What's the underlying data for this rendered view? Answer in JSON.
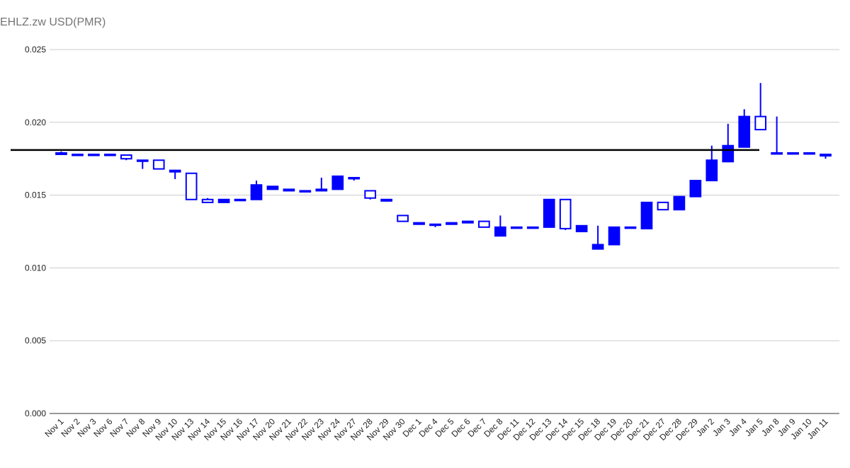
{
  "chart_data": {
    "type": "candlestick",
    "title": "EHLZ.zw USD(PMR)",
    "color": "#0000ff",
    "categories": [
      "Nov 1",
      "Nov 2",
      "Nov 3",
      "Nov 6",
      "Nov 7",
      "Nov 8",
      "Nov 9",
      "Nov 10",
      "Nov 13",
      "Nov 14",
      "Nov 15",
      "Nov 16",
      "Nov 17",
      "Nov 20",
      "Nov 21",
      "Nov 22",
      "Nov 23",
      "Nov 24",
      "Nov 27",
      "Nov 28",
      "Nov 29",
      "Nov 30",
      "Dec 1",
      "Dec 4",
      "Dec 5",
      "Dec 6",
      "Dec 7",
      "Dec 8",
      "Dec 11",
      "Dec 12",
      "Dec 13",
      "Dec 14",
      "Dec 15",
      "Dec 18",
      "Dec 19",
      "Dec 20",
      "Dec 21",
      "Dec 27",
      "Dec 28",
      "Dec 29",
      "Jan 2",
      "Jan 3",
      "Jan 4",
      "Jan 5",
      "Jan 8",
      "Jan 9",
      "Jan 10",
      "Jan 11"
    ],
    "open": [
      0.0178,
      0.0178,
      0.0178,
      0.0178,
      0.0175,
      0.0174,
      0.0168,
      0.0166,
      0.0147,
      0.0145,
      0.0147,
      0.0147,
      0.0157,
      0.0156,
      0.0153,
      0.0153,
      0.0154,
      0.0163,
      0.0162,
      0.0148,
      0.0146,
      0.0132,
      0.013,
      0.013,
      0.013,
      0.0131,
      0.0128,
      0.0128,
      0.0128,
      0.0128,
      0.0147,
      0.0127,
      0.0129,
      0.0116,
      0.0128,
      0.0128,
      0.0145,
      0.014,
      0.0149,
      0.016,
      0.0174,
      0.0184,
      0.0204,
      0.0195,
      0.0179,
      0.0179,
      0.0179,
      0.0177
    ],
    "high": [
      0.018,
      0.0178,
      0.0178,
      0.0178,
      0.01775,
      0.0174,
      0.0174,
      0.0167,
      0.0165,
      0.0148,
      0.0147,
      0.0147,
      0.016,
      0.0156,
      0.0154,
      0.0153,
      0.0162,
      0.0163,
      0.0162,
      0.0153,
      0.0147,
      0.0136,
      0.0131,
      0.013,
      0.0131,
      0.0132,
      0.0132,
      0.0136,
      0.0128,
      0.0128,
      0.0147,
      0.0147,
      0.0129,
      0.0129,
      0.0128,
      0.0128,
      0.0145,
      0.0145,
      0.0149,
      0.016,
      0.0184,
      0.0199,
      0.0209,
      0.0227,
      0.0204,
      0.0179,
      0.0179,
      0.0178
    ],
    "low": [
      0.0178,
      0.0178,
      0.0178,
      0.0178,
      0.0174,
      0.0168,
      0.0168,
      0.0161,
      0.0147,
      0.0145,
      0.0145,
      0.0147,
      0.0147,
      0.0154,
      0.0153,
      0.0152,
      0.0153,
      0.0154,
      0.016,
      0.0147,
      0.0146,
      0.0132,
      0.013,
      0.0128,
      0.013,
      0.0131,
      0.0128,
      0.0122,
      0.0128,
      0.0128,
      0.0128,
      0.0126,
      0.0125,
      0.0113,
      0.0116,
      0.0128,
      0.0127,
      0.014,
      0.014,
      0.0149,
      0.016,
      0.0173,
      0.0183,
      0.0195,
      0.0179,
      0.0179,
      0.0179,
      0.0175
    ],
    "close": [
      0.0179,
      0.0178,
      0.0178,
      0.0178,
      0.01775,
      0.0174,
      0.0174,
      0.0167,
      0.0165,
      0.0147,
      0.0145,
      0.0147,
      0.0147,
      0.0154,
      0.0154,
      0.0153,
      0.0153,
      0.0154,
      0.0162,
      0.0153,
      0.0147,
      0.0136,
      0.0131,
      0.013,
      0.0131,
      0.0132,
      0.0132,
      0.0122,
      0.0128,
      0.0128,
      0.0128,
      0.0147,
      0.0125,
      0.0113,
      0.0116,
      0.0128,
      0.0127,
      0.0145,
      0.014,
      0.0149,
      0.016,
      0.0173,
      0.0183,
      0.0204,
      0.0179,
      0.0179,
      0.0179,
      0.0178
    ],
    "reference_line": 0.0181,
    "ylim": [
      0,
      0.025
    ],
    "yticks": [
      {
        "value": 0,
        "label": "0.000"
      },
      {
        "value": 0.005,
        "label": "0.005"
      },
      {
        "value": 0.01,
        "label": "0.010"
      },
      {
        "value": 0.015,
        "label": "0.015"
      },
      {
        "value": 0.02,
        "label": "0.020"
      },
      {
        "value": 0.025,
        "label": "0.025"
      }
    ],
    "grid": true
  }
}
